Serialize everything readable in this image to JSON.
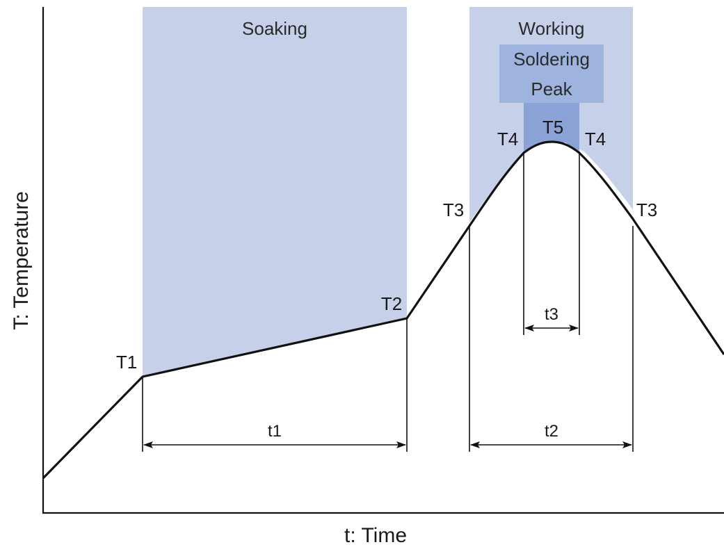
{
  "labels": {
    "soaking": "Soaking",
    "working": "Working",
    "soldering": "Soldering",
    "peak": "Peak",
    "t1_temp": "T1",
    "t2_temp": "T2",
    "t3_left": "T3",
    "t3_right": "T3",
    "t4_left": "T4",
    "t4_right": "T4",
    "t5_temp": "T5",
    "dur_t1": "t1",
    "dur_t2": "t2",
    "dur_t3": "t3",
    "x_axis": "t: Time",
    "y_axis": "T: Temperature"
  },
  "colors": {
    "zone_light": "#c6d0e8",
    "zone_mid": "#9fb3df",
    "zone_dark": "#8aa2d6",
    "line": "#111111"
  }
}
